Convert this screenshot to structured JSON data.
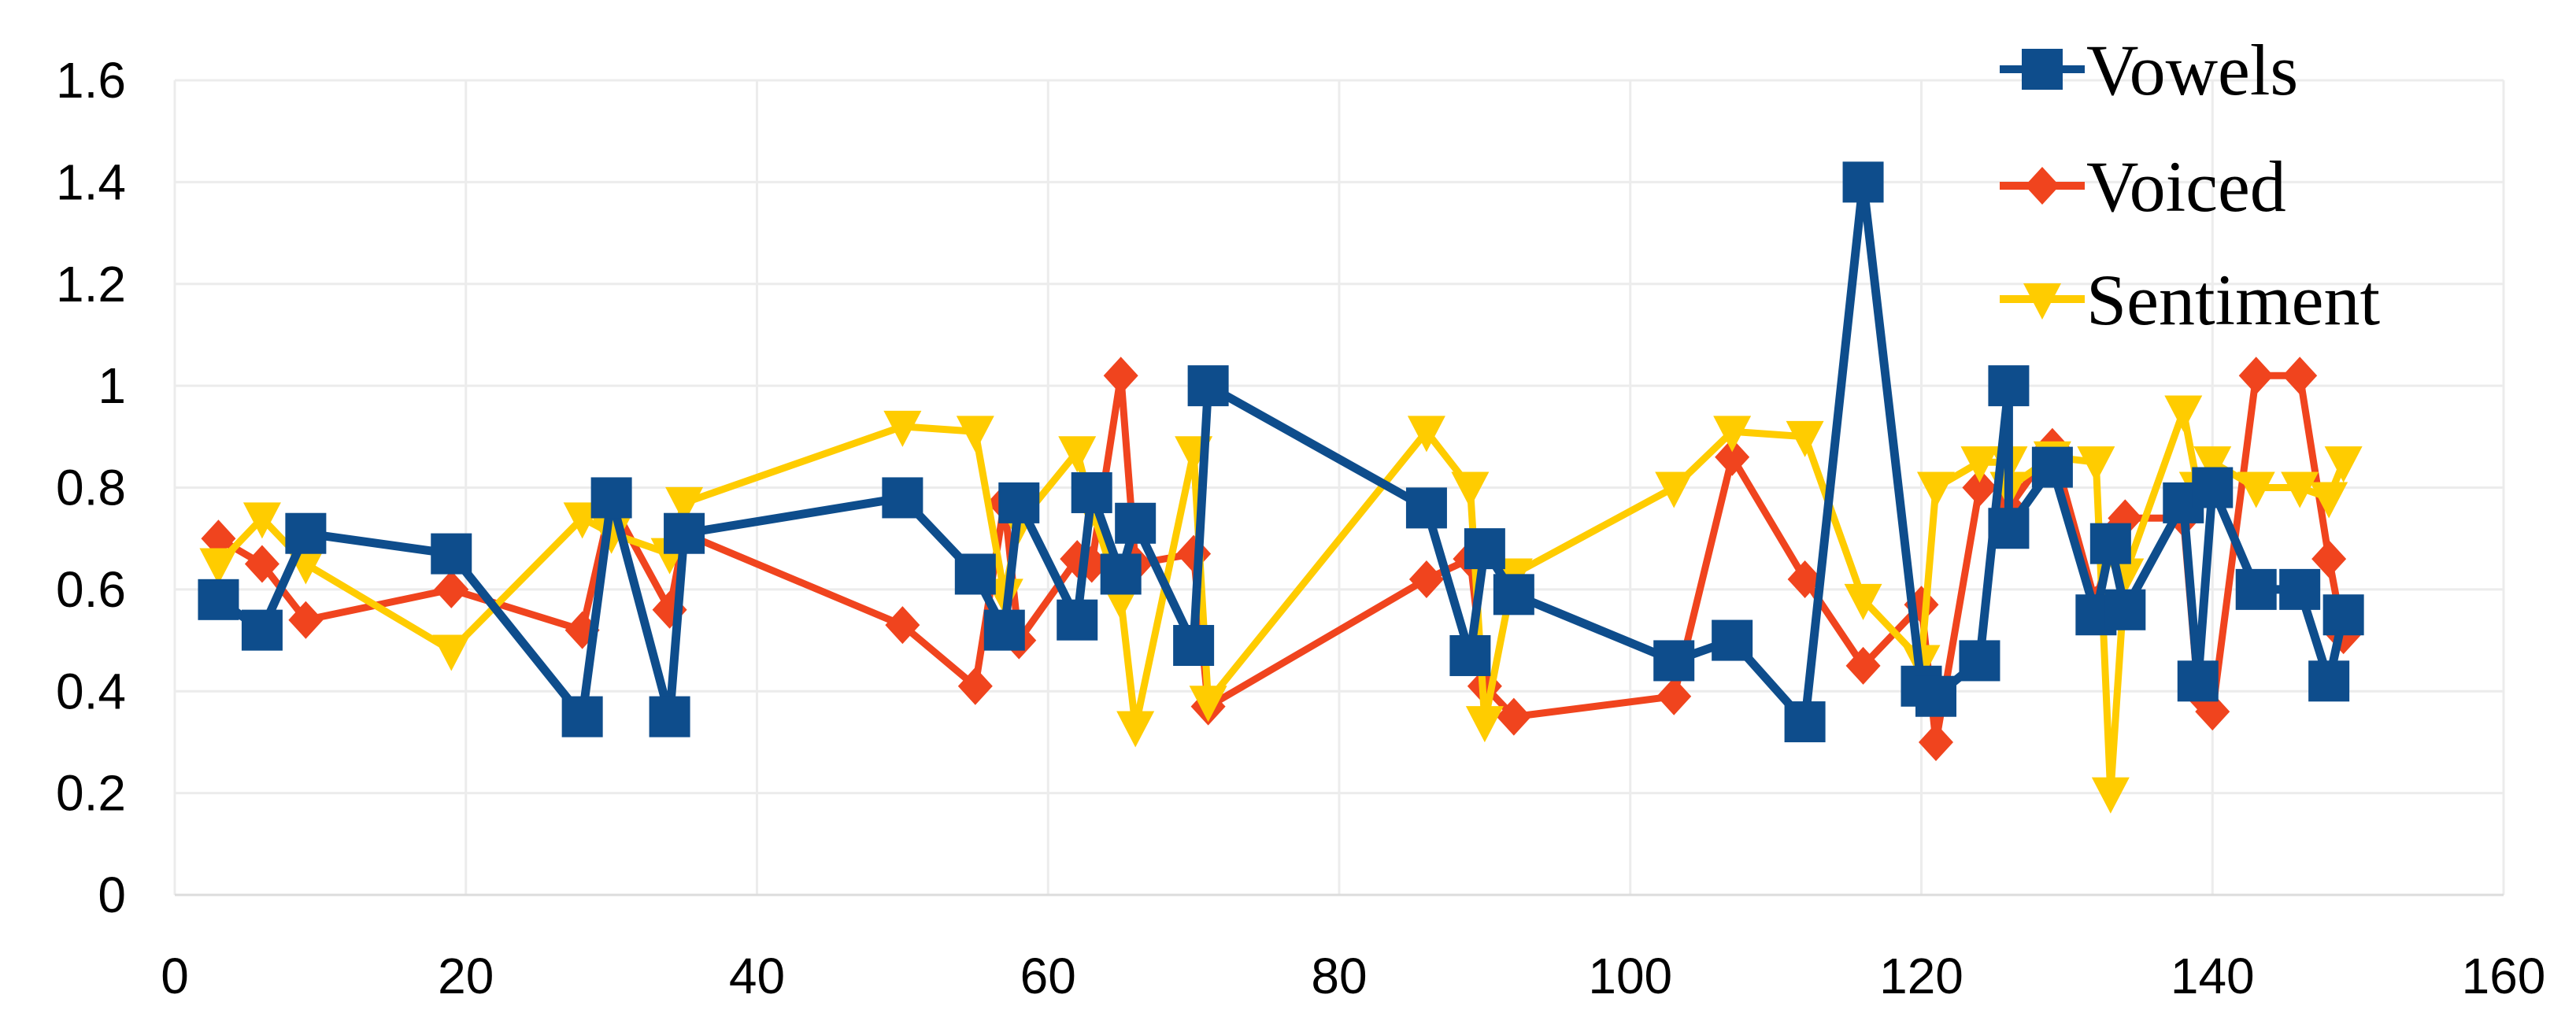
{
  "chart_data": {
    "type": "line",
    "title": "",
    "xlabel": "",
    "ylabel": "",
    "xlim": [
      0,
      160
    ],
    "ylim": [
      0,
      1.6
    ],
    "x_ticks": [
      "0",
      "20",
      "40",
      "60",
      "80",
      "100",
      "120",
      "140",
      "160"
    ],
    "y_ticks": [
      "0",
      "0.2",
      "0.4",
      "0.6",
      "0.8",
      "1",
      "1.2",
      "1.4",
      "1.6"
    ],
    "grid": true,
    "legend_position": "top-right",
    "series": [
      {
        "name": "Vowels",
        "color": "#0e4d8c",
        "marker": "square",
        "x": [
          3,
          6,
          9,
          19,
          28,
          30,
          34,
          35,
          50,
          55,
          57,
          58,
          62,
          63,
          65,
          66,
          70,
          71,
          86,
          89,
          90,
          92,
          103,
          107,
          112,
          116,
          120,
          121,
          124,
          126,
          126,
          129,
          132,
          133,
          134,
          138,
          139,
          140,
          143,
          146,
          148,
          149
        ],
        "y": [
          0.58,
          0.52,
          0.71,
          0.67,
          0.35,
          0.78,
          0.35,
          0.71,
          0.78,
          0.63,
          0.52,
          0.77,
          0.54,
          0.79,
          0.63,
          0.73,
          0.49,
          1.0,
          0.76,
          0.47,
          0.68,
          0.59,
          0.46,
          0.5,
          0.34,
          1.4,
          0.41,
          0.39,
          0.46,
          1.0,
          0.72,
          0.84,
          0.55,
          0.69,
          0.56,
          0.77,
          0.42,
          0.8,
          0.6,
          0.6,
          0.42,
          0.55
        ]
      },
      {
        "name": "Voiced",
        "color": "#f0441e",
        "marker": "diamond",
        "x": [
          3,
          6,
          9,
          19,
          28,
          30,
          34,
          35,
          50,
          55,
          57,
          58,
          62,
          63,
          65,
          66,
          70,
          71,
          86,
          89,
          90,
          92,
          103,
          107,
          112,
          116,
          120,
          121,
          124,
          126,
          126,
          129,
          132,
          133,
          134,
          138,
          139,
          140,
          143,
          146,
          148,
          149
        ],
        "y": [
          0.7,
          0.65,
          0.54,
          0.6,
          0.52,
          0.77,
          0.56,
          0.71,
          0.53,
          0.41,
          0.77,
          0.5,
          0.66,
          0.65,
          1.02,
          0.65,
          0.67,
          0.37,
          0.62,
          0.66,
          0.41,
          0.35,
          0.39,
          0.86,
          0.62,
          0.45,
          0.57,
          0.3,
          0.8,
          0.8,
          0.76,
          0.88,
          0.57,
          0.7,
          0.74,
          0.74,
          0.4,
          0.36,
          1.02,
          1.02,
          0.66,
          0.51
        ]
      },
      {
        "name": "Sentiment",
        "color": "#ffcc00",
        "marker": "triangle-down",
        "x": [
          3,
          6,
          9,
          19,
          28,
          30,
          34,
          35,
          50,
          55,
          57,
          58,
          62,
          63,
          65,
          66,
          70,
          71,
          86,
          89,
          90,
          92,
          103,
          107,
          112,
          116,
          120,
          121,
          124,
          126,
          126,
          129,
          132,
          133,
          134,
          138,
          139,
          140,
          143,
          146,
          148,
          149
        ],
        "y": [
          0.65,
          0.74,
          0.65,
          0.48,
          0.74,
          0.71,
          0.67,
          0.77,
          0.92,
          0.91,
          0.59,
          0.73,
          0.87,
          0.76,
          0.58,
          0.33,
          0.87,
          0.38,
          0.91,
          0.8,
          0.34,
          0.63,
          0.8,
          0.91,
          0.9,
          0.58,
          0.46,
          0.8,
          0.85,
          0.85,
          0.8,
          0.86,
          0.85,
          0.2,
          0.63,
          0.95,
          0.8,
          0.85,
          0.8,
          0.8,
          0.78,
          0.85
        ]
      }
    ]
  }
}
